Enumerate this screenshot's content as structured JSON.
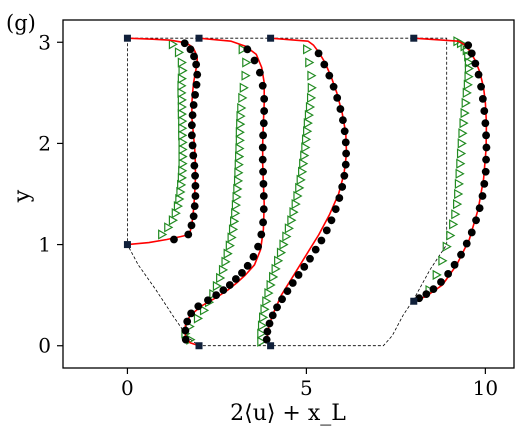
{
  "chart_data": {
    "type": "line",
    "panel_label": "(g)",
    "xlabel": "2⟨u⟩ + x_L",
    "ylabel": "y",
    "xlim": [
      -1.8,
      10.8
    ],
    "ylim": [
      -0.22,
      3.22
    ],
    "xticks": [
      0,
      5,
      10
    ],
    "yticks": [
      0,
      1,
      2,
      3
    ],
    "grid": false,
    "legend": "none",
    "colors": {
      "reference_line": "#ff0000",
      "reference_markers": "#000000",
      "model_markers": "#228b22",
      "domain_outline": "#000000",
      "endpoint_markers": "#10203a"
    },
    "domain_outline": {
      "x": [
        0.0,
        0.0,
        0.3,
        0.8,
        1.3,
        1.7,
        2.0,
        7.15,
        7.4,
        7.7,
        8.0,
        8.45,
        8.92,
        8.92,
        8.0,
        0.0
      ],
      "y": [
        3.04,
        1.0,
        0.8,
        0.55,
        0.28,
        0.08,
        0.0,
        0.0,
        0.1,
        0.3,
        0.46,
        0.75,
        1.0,
        3.04,
        3.04,
        3.04
      ]
    },
    "endpoints": {
      "x": [
        0.0,
        0.0,
        2.0,
        2.0,
        4.0,
        4.0,
        8.0,
        8.0
      ],
      "y": [
        3.04,
        1.0,
        3.04,
        0.0,
        3.04,
        0.0,
        3.04,
        0.44
      ]
    },
    "profiles": [
      {
        "red_line": {
          "x": [
            0.0,
            0.6,
            1.1,
            1.5,
            1.73,
            1.8,
            1.85,
            1.88,
            1.9,
            1.9,
            1.88,
            1.84,
            1.8,
            1.8,
            1.82,
            1.85,
            1.9,
            1.95,
            1.95,
            1.9,
            1.83,
            1.7,
            1.55,
            1.2,
            0.7,
            0.0
          ],
          "y": [
            1.0,
            1.02,
            1.05,
            1.08,
            1.1,
            1.2,
            1.35,
            1.5,
            1.65,
            1.8,
            1.95,
            2.1,
            2.25,
            2.4,
            2.5,
            2.6,
            2.7,
            2.8,
            2.85,
            2.9,
            2.95,
            2.98,
            3.0,
            3.02,
            3.03,
            3.04
          ]
        },
        "black_dots": {
          "x": [
            1.3,
            1.7,
            1.79,
            1.85,
            1.88,
            1.9,
            1.9,
            1.89,
            1.87,
            1.84,
            1.82,
            1.8,
            1.8,
            1.82,
            1.85,
            1.89,
            1.93,
            1.95,
            1.92,
            1.86,
            1.76,
            1.6
          ],
          "y": [
            1.05,
            1.1,
            1.19,
            1.28,
            1.38,
            1.48,
            1.58,
            1.68,
            1.78,
            1.88,
            1.98,
            2.08,
            2.18,
            2.28,
            2.38,
            2.48,
            2.58,
            2.68,
            2.78,
            2.86,
            2.93,
            2.99
          ]
        },
        "green_triangles": {
          "x": [
            0.95,
            1.12,
            1.25,
            1.33,
            1.39,
            1.43,
            1.46,
            1.48,
            1.5,
            1.51,
            1.52,
            1.52,
            1.52,
            1.52,
            1.51,
            1.51,
            1.51,
            1.5,
            1.5,
            1.5,
            1.49,
            1.49,
            1.5,
            1.52,
            1.5,
            1.42,
            1.25
          ],
          "y": [
            1.1,
            1.17,
            1.24,
            1.31,
            1.38,
            1.45,
            1.52,
            1.59,
            1.66,
            1.73,
            1.8,
            1.87,
            1.94,
            2.01,
            2.08,
            2.15,
            2.22,
            2.29,
            2.36,
            2.43,
            2.5,
            2.57,
            2.64,
            2.72,
            2.8,
            2.9,
            2.98
          ]
        }
      },
      {
        "red_line": {
          "x": [
            2.0,
            1.75,
            1.62,
            1.62,
            1.75,
            2.1,
            2.5,
            2.8,
            3.05,
            3.3,
            3.55,
            3.72,
            3.8,
            3.82,
            3.8,
            3.78,
            3.78,
            3.8,
            3.82,
            3.82,
            3.75,
            3.6,
            3.3,
            2.9,
            2.0
          ],
          "y": [
            0.0,
            0.03,
            0.1,
            0.2,
            0.3,
            0.4,
            0.48,
            0.55,
            0.62,
            0.7,
            0.8,
            0.95,
            1.15,
            1.4,
            1.6,
            1.8,
            2.0,
            2.2,
            2.4,
            2.6,
            2.75,
            2.88,
            2.96,
            3.01,
            3.04
          ]
        },
        "black_dots": {
          "x": [
            1.63,
            1.62,
            1.67,
            1.78,
            1.98,
            2.25,
            2.48,
            2.68,
            2.86,
            3.03,
            3.2,
            3.36,
            3.52,
            3.65,
            3.74,
            3.79,
            3.81,
            3.81,
            3.8,
            3.79,
            3.78,
            3.78,
            3.79,
            3.81,
            3.82,
            3.82,
            3.78,
            3.7,
            3.55,
            3.35
          ],
          "y": [
            0.06,
            0.15,
            0.24,
            0.32,
            0.39,
            0.45,
            0.5,
            0.55,
            0.6,
            0.66,
            0.72,
            0.79,
            0.88,
            0.98,
            1.1,
            1.22,
            1.35,
            1.48,
            1.6,
            1.72,
            1.84,
            1.96,
            2.08,
            2.2,
            2.32,
            2.44,
            2.57,
            2.7,
            2.82,
            2.93
          ]
        },
        "green_triangles": {
          "x": [
            1.74,
            1.6,
            1.72,
            1.95,
            2.12,
            2.26,
            2.38,
            2.48,
            2.57,
            2.65,
            2.72,
            2.78,
            2.84,
            2.89,
            2.93,
            2.96,
            2.99,
            3.01,
            3.03,
            3.05,
            3.07,
            3.08,
            3.09,
            3.1,
            3.11,
            3.12,
            3.12,
            3.13,
            3.14,
            3.16,
            3.19,
            3.23,
            3.28,
            3.3,
            3.2
          ],
          "y": [
            0.06,
            0.12,
            0.19,
            0.27,
            0.35,
            0.43,
            0.51,
            0.59,
            0.67,
            0.75,
            0.83,
            0.91,
            0.99,
            1.07,
            1.15,
            1.23,
            1.31,
            1.39,
            1.47,
            1.55,
            1.63,
            1.71,
            1.79,
            1.87,
            1.95,
            2.03,
            2.11,
            2.19,
            2.27,
            2.35,
            2.45,
            2.55,
            2.67,
            2.8,
            2.93
          ]
        }
      },
      {
        "red_line": {
          "x": [
            4.0,
            3.9,
            3.92,
            4.05,
            4.3,
            4.65,
            5.0,
            5.35,
            5.65,
            5.9,
            6.05,
            6.12,
            6.1,
            6.0,
            5.85,
            5.7,
            5.52,
            5.35,
            5.2,
            5.05,
            4.0
          ],
          "y": [
            0.0,
            0.05,
            0.15,
            0.3,
            0.5,
            0.7,
            0.9,
            1.1,
            1.3,
            1.5,
            1.7,
            1.9,
            2.1,
            2.3,
            2.5,
            2.65,
            2.8,
            2.9,
            2.97,
            3.01,
            3.04
          ]
        },
        "black_dots": {
          "x": [
            3.89,
            3.91,
            3.97,
            4.06,
            4.18,
            4.32,
            4.47,
            4.62,
            4.78,
            4.94,
            5.1,
            5.26,
            5.42,
            5.57,
            5.7,
            5.82,
            5.92,
            6.0,
            6.06,
            6.1,
            6.11,
            6.1,
            6.07,
            6.02,
            5.95,
            5.86,
            5.76,
            5.64,
            5.5,
            5.34
          ],
          "y": [
            0.06,
            0.14,
            0.22,
            0.3,
            0.38,
            0.46,
            0.54,
            0.62,
            0.7,
            0.78,
            0.86,
            0.95,
            1.04,
            1.14,
            1.24,
            1.35,
            1.46,
            1.57,
            1.68,
            1.79,
            1.9,
            2.01,
            2.12,
            2.23,
            2.34,
            2.45,
            2.56,
            2.67,
            2.78,
            2.89
          ]
        },
        "green_triangles": {
          "x": [
            3.72,
            3.72,
            3.74,
            3.77,
            3.81,
            3.86,
            3.92,
            3.98,
            4.05,
            4.12,
            4.19,
            4.27,
            4.34,
            4.42,
            4.49,
            4.56,
            4.62,
            4.68,
            4.73,
            4.78,
            4.82,
            4.86,
            4.89,
            4.92,
            4.95,
            4.97,
            5.0,
            5.02,
            5.05,
            5.08,
            5.11,
            5.13,
            5.12,
            5.06,
            5.0
          ],
          "y": [
            0.04,
            0.12,
            0.2,
            0.28,
            0.36,
            0.44,
            0.52,
            0.6,
            0.68,
            0.76,
            0.84,
            0.92,
            1.0,
            1.08,
            1.16,
            1.24,
            1.32,
            1.4,
            1.48,
            1.56,
            1.64,
            1.72,
            1.8,
            1.88,
            1.96,
            2.04,
            2.12,
            2.2,
            2.28,
            2.36,
            2.45,
            2.55,
            2.67,
            2.8,
            2.93
          ]
        }
      },
      {
        "red_line": {
          "x": [
            8.0,
            8.35,
            8.8,
            9.2,
            9.55,
            9.8,
            9.95,
            10.02,
            10.03,
            10.0,
            9.95,
            9.85,
            9.72,
            9.55,
            9.4,
            9.25,
            8.0
          ],
          "y": [
            0.44,
            0.49,
            0.6,
            0.8,
            1.05,
            1.35,
            1.65,
            1.95,
            2.2,
            2.4,
            2.55,
            2.7,
            2.82,
            2.92,
            2.98,
            3.01,
            3.04
          ]
        },
        "black_dots": {
          "x": [
            8.15,
            8.35,
            8.55,
            8.76,
            8.96,
            9.14,
            9.32,
            9.48,
            9.62,
            9.74,
            9.84,
            9.92,
            9.97,
            10.01,
            10.02,
            10.03,
            10.02,
            10.0,
            9.97,
            9.93,
            9.88,
            9.81,
            9.72,
            9.62,
            9.52
          ],
          "y": [
            0.47,
            0.51,
            0.56,
            0.63,
            0.71,
            0.8,
            0.9,
            1.01,
            1.12,
            1.24,
            1.36,
            1.48,
            1.6,
            1.72,
            1.84,
            1.96,
            2.08,
            2.2,
            2.32,
            2.44,
            2.56,
            2.68,
            2.79,
            2.89,
            2.97
          ]
        },
        "green_triangles": {
          "x": [
            8.42,
            8.62,
            8.78,
            8.9,
            9.0,
            9.08,
            9.14,
            9.19,
            9.22,
            9.24,
            9.26,
            9.28,
            9.3,
            9.32,
            9.34,
            9.37,
            9.4,
            9.43,
            9.46,
            9.49,
            9.51,
            9.52,
            9.52,
            9.5,
            9.46,
            9.4,
            9.3,
            9.2
          ],
          "y": [
            0.55,
            0.7,
            0.84,
            0.98,
            1.09,
            1.2,
            1.3,
            1.4,
            1.5,
            1.6,
            1.7,
            1.8,
            1.9,
            2.0,
            2.1,
            2.2,
            2.3,
            2.4,
            2.5,
            2.58,
            2.66,
            2.74,
            2.8,
            2.86,
            2.92,
            2.96,
            2.99,
            3.01
          ]
        }
      }
    ]
  }
}
